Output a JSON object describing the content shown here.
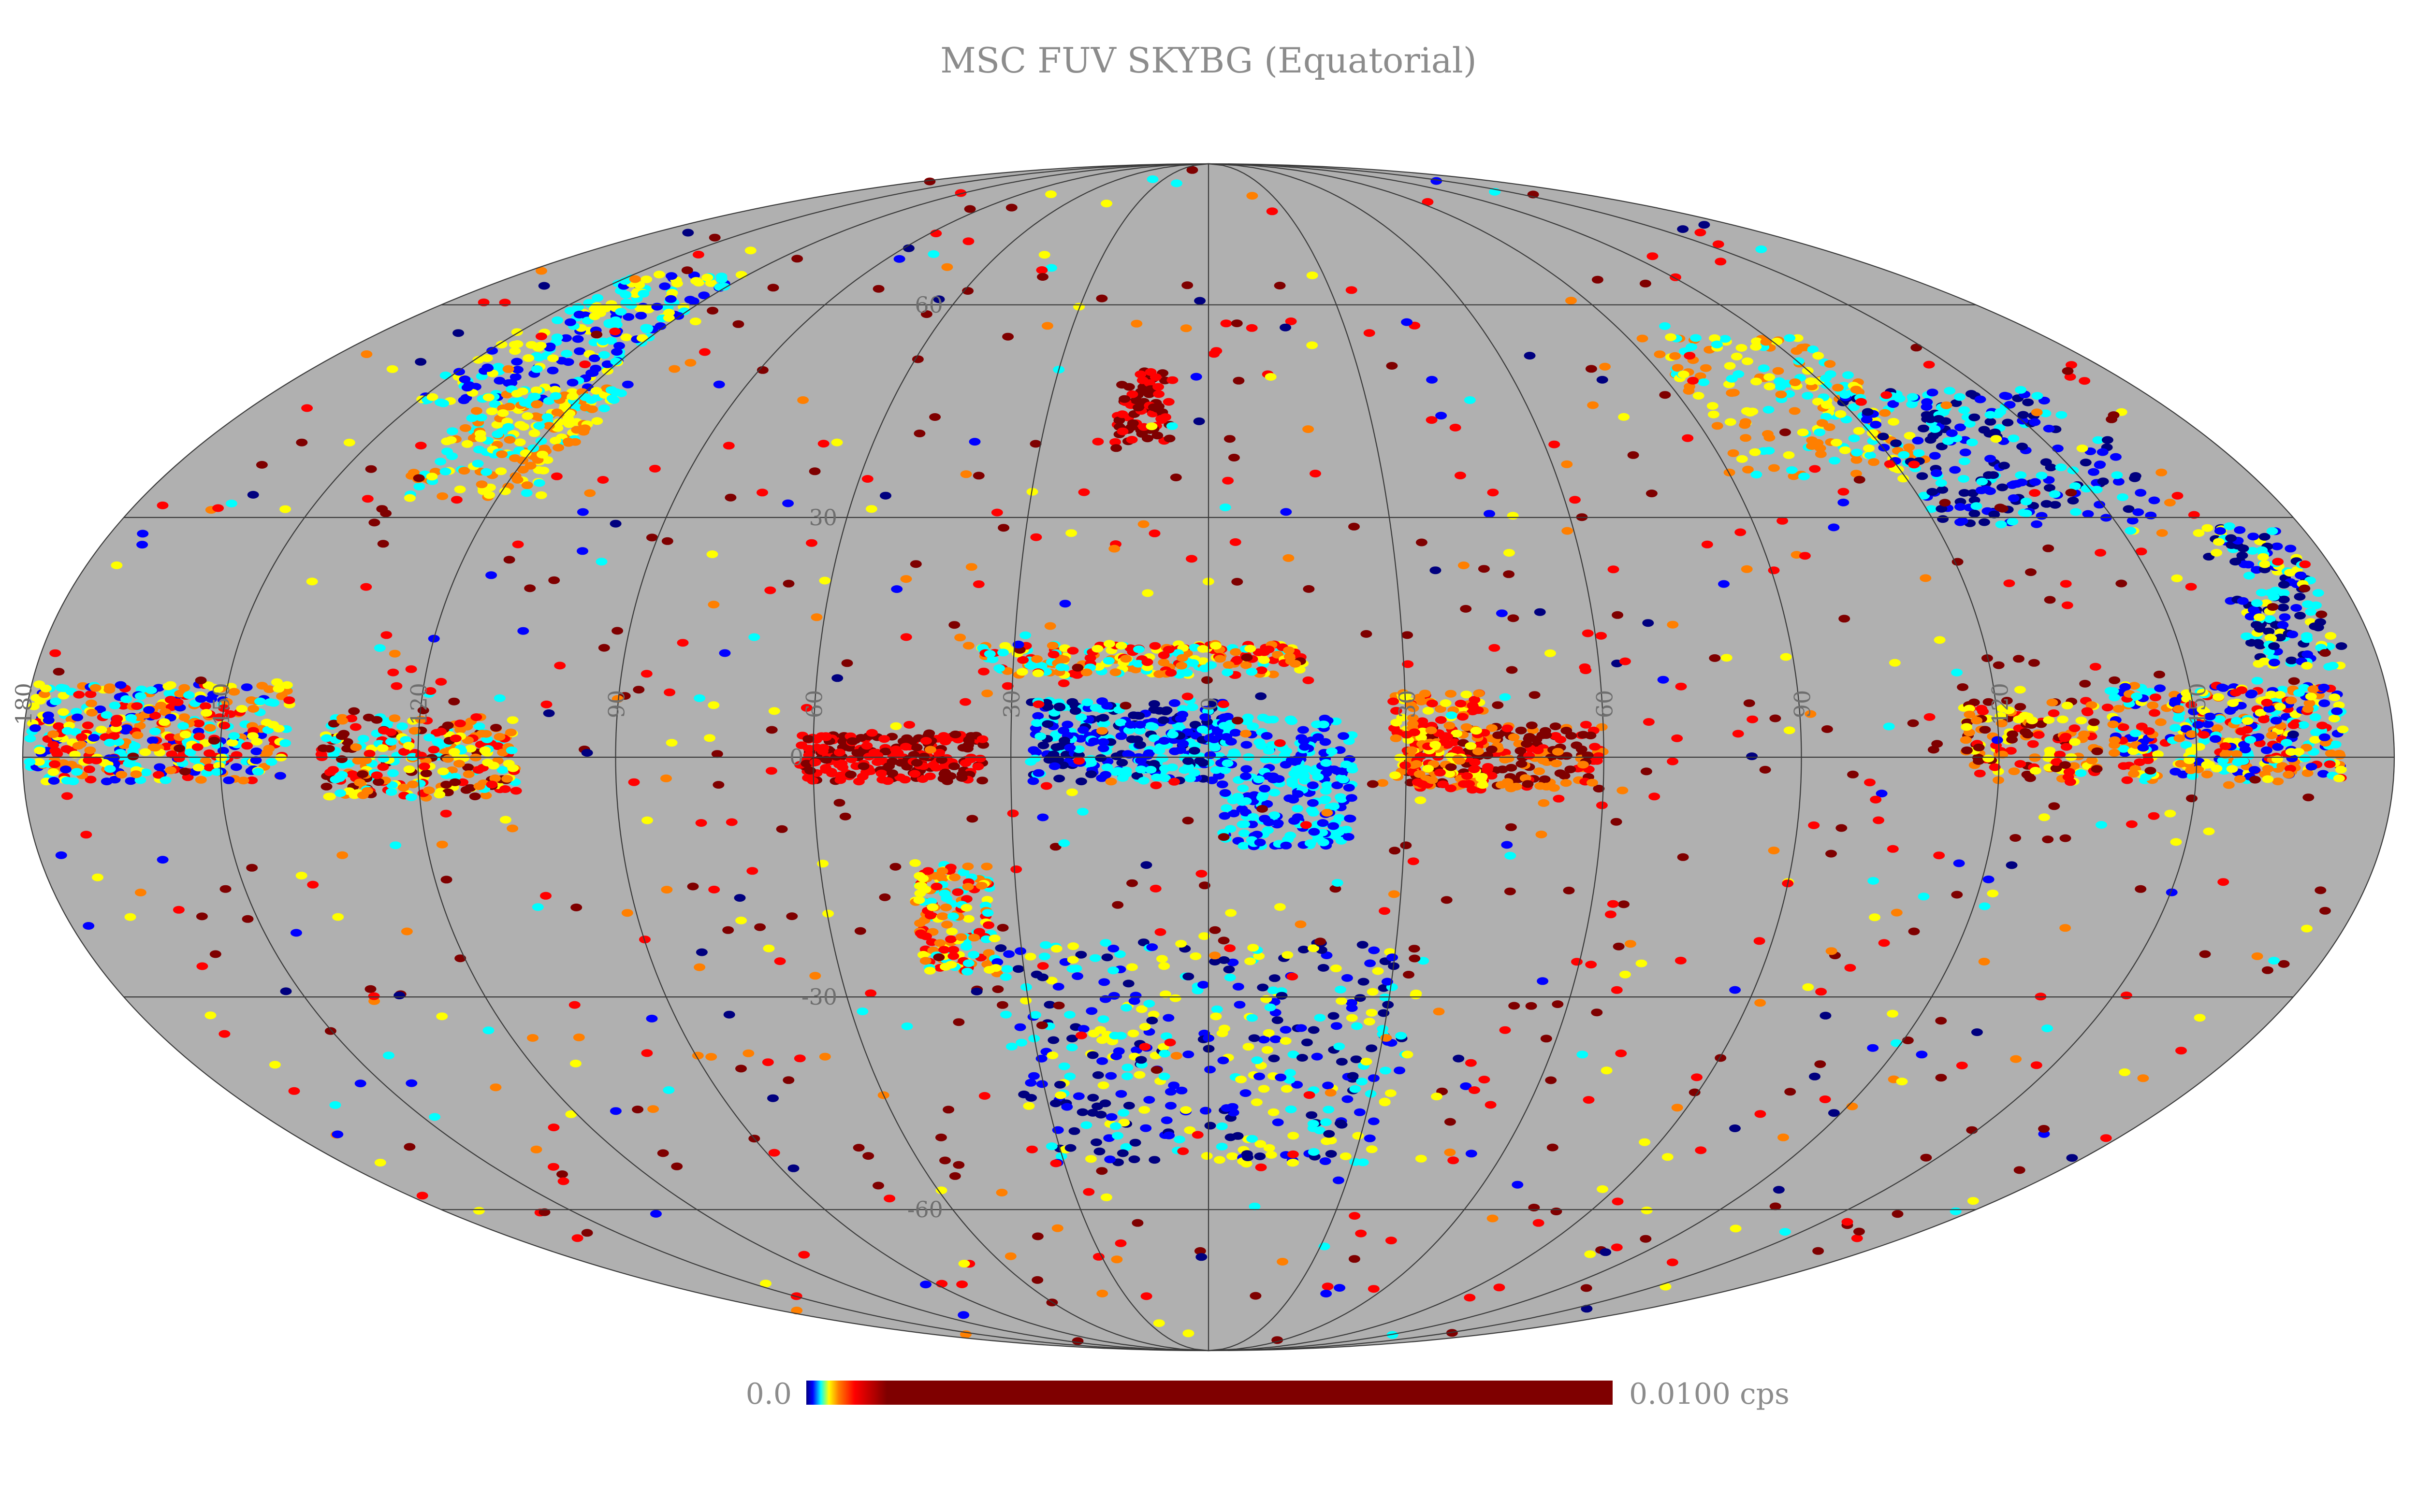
{
  "title": "MSC FUV SKYBG (Equatorial)",
  "colorbar": {
    "min_label": "0.0",
    "max_label": "0.0100 cps",
    "colormap": [
      "#00007f",
      "#0000ff",
      "#00ffff",
      "#ffff00",
      "#ff7f00",
      "#ff0000",
      "#7f0000"
    ]
  },
  "colors": {
    "background": "#ffffff",
    "sky_fill": "#b0b0b0",
    "grid": "#3a3a3a"
  },
  "grid_labels": {
    "longitude": [
      "180",
      "150",
      "120",
      "90",
      "60",
      "30",
      "0",
      "30",
      "60",
      "90",
      "120",
      "150"
    ],
    "latitude": [
      "60",
      "30",
      "0",
      "-30",
      "-60"
    ]
  },
  "projection": "mollweide",
  "legend": "bottom"
}
